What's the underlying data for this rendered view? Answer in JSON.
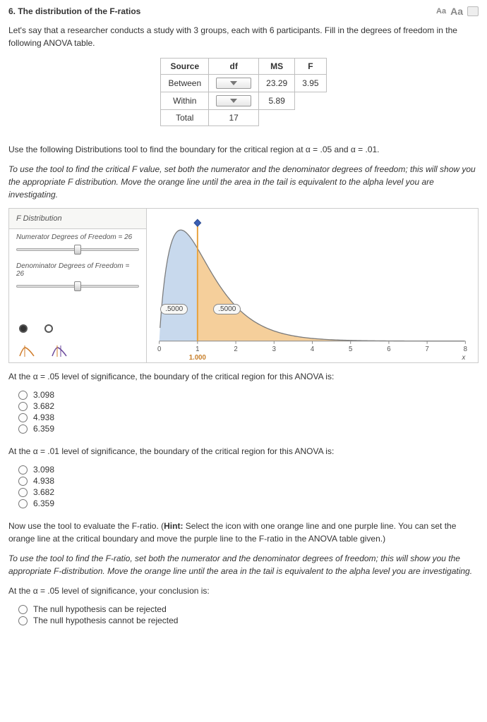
{
  "header": {
    "title": "6.  The distribution of the F-ratios",
    "tools": {
      "aa_small": "Aa",
      "aa_large": "Aa"
    }
  },
  "intro": "Let's say that a researcher conducts a study with 3 groups, each with 6 participants. Fill in the degrees of freedom in the following ANOVA table.",
  "anova": {
    "headers": [
      "Source",
      "df",
      "MS",
      "F"
    ],
    "rows": [
      {
        "source": "Between",
        "df": "__dropdown__",
        "ms": "23.29",
        "f": "3.95"
      },
      {
        "source": "Within",
        "df": "__dropdown__",
        "ms": "5.89",
        "f": ""
      },
      {
        "source": "Total",
        "df": "17",
        "ms": "",
        "f": ""
      }
    ]
  },
  "p2": "Use the following Distributions tool to find the boundary for the critical region at α = .05 and α = .01.",
  "p3": "To use the tool to find the critical F value, set both the numerator and the denominator degrees of freedom; this will show you the appropriate F distribution. Move the orange line until the area in the tail is equivalent to the alpha level you are investigating.",
  "tool": {
    "title": "F Distribution",
    "num_label": "Numerator Degrees of Freedom = 26",
    "den_label": "Denominator Degrees of Freedom = 26",
    "chart": {
      "xmin": 0,
      "xmax": 8,
      "xticks": [
        0,
        1,
        2,
        3,
        4,
        5,
        6,
        7,
        8
      ],
      "xlabel": "x",
      "critical_x": 1.0,
      "critical_label": "1.000",
      "left_area_label": ".5000",
      "right_area_label": ".5000",
      "fill_left_color": "#c8d9ed",
      "fill_right_color": "#f5cf9b",
      "curve_color": "#7a7a7a",
      "critical_line_color": "#e8a13a",
      "marker_color": "#3b5fb5",
      "axis_color": "#888",
      "font_size": 10
    }
  },
  "q1": {
    "prompt": "At the α = .05 level of significance, the boundary of the critical region for this ANOVA is:",
    "options": [
      "3.098",
      "3.682",
      "4.938",
      "6.359"
    ]
  },
  "q2": {
    "prompt": "At the α = .01 level of significance, the boundary of the critical region for this ANOVA is:",
    "options": [
      "3.098",
      "4.938",
      "3.682",
      "6.359"
    ]
  },
  "p4": "Now use the tool to evaluate the F-ratio. (Hint: Select the icon with one orange line and one purple line. You can set the orange line at the critical boundary and move the purple line to the F-ratio in the ANOVA table given.)",
  "p4_hint_prefix": "Now use the tool to evaluate the F-ratio. (",
  "p4_hint_bold": "Hint:",
  "p4_hint_rest": " Select the icon with one orange line and one purple line. You can set the orange line at the critical boundary and move the purple line to the F-ratio in the ANOVA table given.)",
  "p5": "To use the tool to find the F-ratio, set both the numerator and the denominator degrees of freedom; this will show you the appropriate F-distribution. Move the orange line until the area in the tail is equivalent to the alpha level you are investigating.",
  "q3": {
    "prompt": "At the α = .05 level of significance, your conclusion is:",
    "options": [
      "The null hypothesis can be rejected",
      "The null hypothesis cannot be rejected"
    ]
  }
}
